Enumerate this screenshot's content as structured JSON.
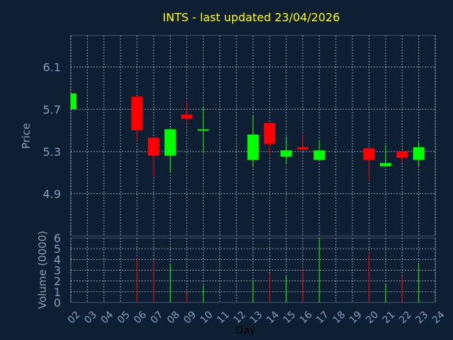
{
  "chart_data": {
    "type": "candlestick",
    "title": "INTS - last updated 23/04/2026",
    "xlabel": "Day",
    "ylabel": "Price",
    "volume_label": "Volume (0000)",
    "x_tick_labels": [
      "02",
      "03",
      "04",
      "05",
      "06",
      "07",
      "08",
      "09",
      "10",
      "11",
      "12",
      "13",
      "14",
      "15",
      "16",
      "17",
      "18",
      "19",
      "20",
      "21",
      "22",
      "23",
      "24"
    ],
    "price_ticks": [
      "6.1",
      "5.7",
      "5.3",
      "4.9"
    ],
    "price_tick_values": [
      6.1,
      5.7,
      5.3,
      4.9
    ],
    "price_ylim": [
      4.5,
      6.4
    ],
    "volume_ticks": [
      "0",
      "1",
      "2",
      "3",
      "4",
      "5",
      "6"
    ],
    "volume_tick_values": [
      0,
      1,
      2,
      3,
      4,
      5,
      6
    ],
    "volume_ylim": [
      0,
      6
    ],
    "grid": true,
    "colors": {
      "background": "#0f1f33",
      "up": "#00ff00",
      "down": "#ff0000",
      "title": "#ffff00",
      "grid": "#ffffff"
    },
    "candles": [
      {
        "day": "02",
        "open": 5.7,
        "high": 5.85,
        "low": 5.7,
        "close": 5.85,
        "volume": null
      },
      {
        "day": "06",
        "open": 5.82,
        "high": 5.82,
        "low": 5.4,
        "close": 5.5,
        "volume": 4.1
      },
      {
        "day": "07",
        "open": 5.43,
        "high": 5.43,
        "low": 5.06,
        "close": 5.26,
        "volume": 3.8
      },
      {
        "day": "08",
        "open": 5.26,
        "high": 5.52,
        "low": 5.1,
        "close": 5.51,
        "volume": 3.6
      },
      {
        "day": "09",
        "open": 5.65,
        "high": 5.78,
        "low": 5.57,
        "close": 5.61,
        "volume": 0.9
      },
      {
        "day": "10",
        "open": 5.5,
        "high": 5.72,
        "low": 5.3,
        "close": 5.51,
        "volume": 1.6
      },
      {
        "day": "13",
        "open": 5.22,
        "high": 5.64,
        "low": 5.15,
        "close": 5.46,
        "volume": 2.1
      },
      {
        "day": "14",
        "open": 5.57,
        "high": 5.57,
        "low": 5.26,
        "close": 5.37,
        "volume": 2.7
      },
      {
        "day": "15",
        "open": 5.25,
        "high": 5.44,
        "low": 5.18,
        "close": 5.31,
        "volume": 2.5
      },
      {
        "day": "16",
        "open": 5.34,
        "high": 5.46,
        "low": 5.31,
        "close": 5.32,
        "volume": 3.1
      },
      {
        "day": "17",
        "open": 5.22,
        "high": 5.41,
        "low": 5.22,
        "close": 5.31,
        "volume": 6.0
      },
      {
        "day": "20",
        "open": 5.33,
        "high": 5.33,
        "low": 5.02,
        "close": 5.22,
        "volume": 4.7
      },
      {
        "day": "21",
        "open": 5.16,
        "high": 5.36,
        "low": 5.16,
        "close": 5.19,
        "volume": 1.7
      },
      {
        "day": "22",
        "open": 5.3,
        "high": 5.3,
        "low": 5.19,
        "close": 5.24,
        "volume": 2.4
      },
      {
        "day": "23",
        "open": 5.22,
        "high": 5.39,
        "low": 5.16,
        "close": 5.34,
        "volume": 3.7
      }
    ]
  }
}
